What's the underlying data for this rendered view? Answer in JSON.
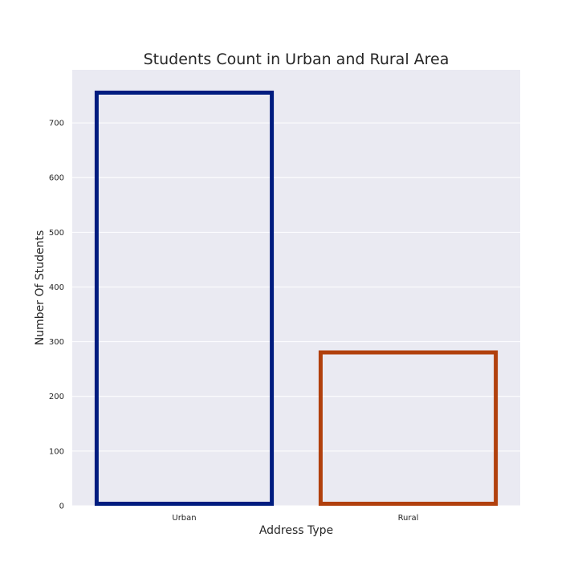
{
  "chart_data": {
    "type": "bar",
    "title": "Students Count in Urban and Rural Area",
    "xlabel": "Address Type",
    "ylabel": "Number Of Students",
    "categories": [
      "Urban",
      "Rural"
    ],
    "values": [
      759,
      284
    ],
    "ylim": [
      0,
      797
    ],
    "yticks": [
      0,
      100,
      200,
      300,
      400,
      500,
      600,
      700
    ],
    "grid": true,
    "bar_style": "outline",
    "colors": [
      "#001c7f",
      "#b1400d"
    ],
    "background": "#eaeaf2"
  }
}
